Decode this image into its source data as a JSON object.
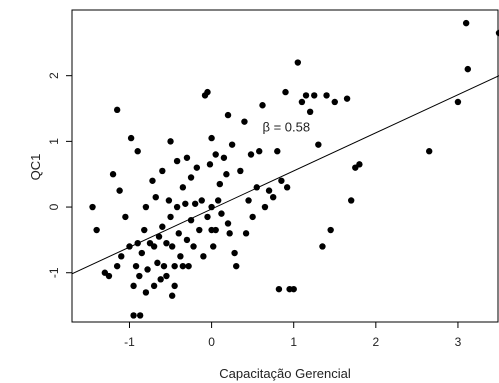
{
  "chart_data": {
    "type": "scatter",
    "title": "",
    "xlabel": "Capacitação Gerencial",
    "ylabel": "QC1",
    "xlim": [
      -1.7,
      3.5
    ],
    "ylim": [
      -1.75,
      3.0
    ],
    "x_ticks": [
      -1,
      0,
      1,
      2,
      3
    ],
    "y_ticks": [
      -1,
      0,
      1,
      2
    ],
    "grid": false,
    "colors": {
      "points": "#000000",
      "line": "#000000",
      "frame": "#000000"
    },
    "annotation": {
      "text": "β = 0.58",
      "x": 0.62,
      "y": 1.15
    },
    "regression_line": {
      "intercept": -0.03,
      "slope": 0.58
    },
    "points": [
      [
        -1.45,
        0.0
      ],
      [
        -1.4,
        -0.35
      ],
      [
        -1.3,
        -1.0
      ],
      [
        -1.25,
        -1.05
      ],
      [
        -1.2,
        0.5
      ],
      [
        -1.15,
        1.48
      ],
      [
        -1.15,
        -0.9
      ],
      [
        -1.12,
        0.25
      ],
      [
        -1.1,
        -0.75
      ],
      [
        -1.05,
        -0.15
      ],
      [
        -1.0,
        -0.6
      ],
      [
        -0.98,
        1.05
      ],
      [
        -0.95,
        -1.2
      ],
      [
        -0.95,
        -1.65
      ],
      [
        -0.92,
        -0.9
      ],
      [
        -0.9,
        0.85
      ],
      [
        -0.9,
        -0.55
      ],
      [
        -0.88,
        -1.05
      ],
      [
        -0.87,
        -1.65
      ],
      [
        -0.85,
        -0.7
      ],
      [
        -0.82,
        -0.35
      ],
      [
        -0.8,
        -1.3
      ],
      [
        -0.8,
        0.0
      ],
      [
        -0.78,
        -0.95
      ],
      [
        -0.75,
        -0.55
      ],
      [
        -0.72,
        0.4
      ],
      [
        -0.7,
        -1.2
      ],
      [
        -0.7,
        -0.6
      ],
      [
        -0.68,
        0.15
      ],
      [
        -0.66,
        -0.85
      ],
      [
        -0.64,
        -0.45
      ],
      [
        -0.62,
        -1.1
      ],
      [
        -0.6,
        0.55
      ],
      [
        -0.6,
        -0.3
      ],
      [
        -0.58,
        -0.9
      ],
      [
        -0.55,
        -0.55
      ],
      [
        -0.55,
        -1.05
      ],
      [
        -0.52,
        0.1
      ],
      [
        -0.5,
        1.0
      ],
      [
        -0.5,
        -0.15
      ],
      [
        -0.48,
        -0.6
      ],
      [
        -0.48,
        -1.35
      ],
      [
        -0.45,
        -0.9
      ],
      [
        -0.45,
        -1.2
      ],
      [
        -0.42,
        0.7
      ],
      [
        -0.42,
        0.0
      ],
      [
        -0.4,
        -0.4
      ],
      [
        -0.38,
        -0.75
      ],
      [
        -0.35,
        0.3
      ],
      [
        -0.35,
        -0.9
      ],
      [
        -0.32,
        0.05
      ],
      [
        -0.3,
        -0.5
      ],
      [
        -0.3,
        0.75
      ],
      [
        -0.28,
        -0.9
      ],
      [
        -0.25,
        0.45
      ],
      [
        -0.25,
        -0.2
      ],
      [
        -0.22,
        -0.6
      ],
      [
        -0.2,
        0.05
      ],
      [
        -0.18,
        0.6
      ],
      [
        -0.15,
        -0.35
      ],
      [
        -0.12,
        0.1
      ],
      [
        -0.1,
        -0.75
      ],
      [
        -0.08,
        1.7
      ],
      [
        -0.05,
        1.75
      ],
      [
        -0.05,
        -0.15
      ],
      [
        -0.02,
        0.65
      ],
      [
        0.0,
        1.05
      ],
      [
        0.0,
        -0.35
      ],
      [
        0.0,
        0.0
      ],
      [
        0.02,
        -0.6
      ],
      [
        0.05,
        0.8
      ],
      [
        0.05,
        -0.35
      ],
      [
        0.08,
        0.1
      ],
      [
        0.1,
        0.35
      ],
      [
        0.12,
        -0.1
      ],
      [
        0.15,
        0.75
      ],
      [
        0.18,
        0.5
      ],
      [
        0.2,
        1.4
      ],
      [
        0.2,
        -0.25
      ],
      [
        0.22,
        -0.4
      ],
      [
        0.25,
        0.95
      ],
      [
        0.28,
        -0.7
      ],
      [
        0.3,
        -0.9
      ],
      [
        0.35,
        0.55
      ],
      [
        0.4,
        1.3
      ],
      [
        0.42,
        -0.4
      ],
      [
        0.45,
        0.1
      ],
      [
        0.48,
        0.8
      ],
      [
        0.5,
        -0.15
      ],
      [
        0.55,
        0.3
      ],
      [
        0.58,
        0.85
      ],
      [
        0.62,
        1.55
      ],
      [
        0.65,
        0.0
      ],
      [
        0.7,
        0.25
      ],
      [
        0.75,
        0.15
      ],
      [
        0.8,
        0.85
      ],
      [
        0.82,
        -1.25
      ],
      [
        0.85,
        0.4
      ],
      [
        0.9,
        1.75
      ],
      [
        0.92,
        0.3
      ],
      [
        0.95,
        -1.25
      ],
      [
        1.0,
        -1.25
      ],
      [
        1.05,
        2.2
      ],
      [
        1.1,
        1.6
      ],
      [
        1.15,
        1.7
      ],
      [
        1.2,
        1.45
      ],
      [
        1.25,
        1.7
      ],
      [
        1.3,
        0.95
      ],
      [
        1.35,
        -0.6
      ],
      [
        1.4,
        1.7
      ],
      [
        1.45,
        -0.35
      ],
      [
        1.5,
        1.6
      ],
      [
        1.65,
        1.65
      ],
      [
        1.7,
        0.1
      ],
      [
        1.75,
        0.6
      ],
      [
        1.8,
        0.65
      ],
      [
        2.65,
        0.85
      ],
      [
        3.0,
        1.6
      ],
      [
        3.1,
        2.8
      ],
      [
        3.12,
        2.1
      ],
      [
        3.5,
        2.65
      ]
    ]
  }
}
